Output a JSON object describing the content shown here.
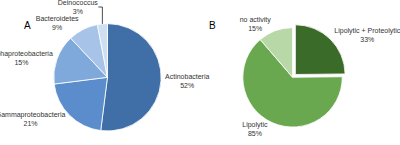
{
  "chart_data": [
    {
      "type": "pie",
      "title": "A",
      "categories": [
        "Actinobacteria",
        "Gammaproteobacteria",
        "Alphaproteobacteria",
        "Bacteroidetes",
        "Deinococcus"
      ],
      "values": [
        52,
        21,
        15,
        9,
        3
      ],
      "value_labels": [
        "52%",
        "21%",
        "15%",
        "9%",
        "3%"
      ],
      "colors": [
        "#3f6fa6",
        "#5b8ccb",
        "#7fa8db",
        "#a7c3e8",
        "#cfdff2"
      ],
      "data_labels": true
    },
    {
      "type": "pie",
      "title": "B",
      "categories": [
        "Lipolytic + Proteolytic",
        "Lipolytic",
        "no activity"
      ],
      "values": [
        33,
        85,
        15
      ],
      "value_labels": [
        "33%",
        "85%",
        "15%"
      ],
      "colors": [
        "#3b6b28",
        "#6aa84f",
        "#b8d8a8"
      ],
      "data_labels": true
    }
  ]
}
